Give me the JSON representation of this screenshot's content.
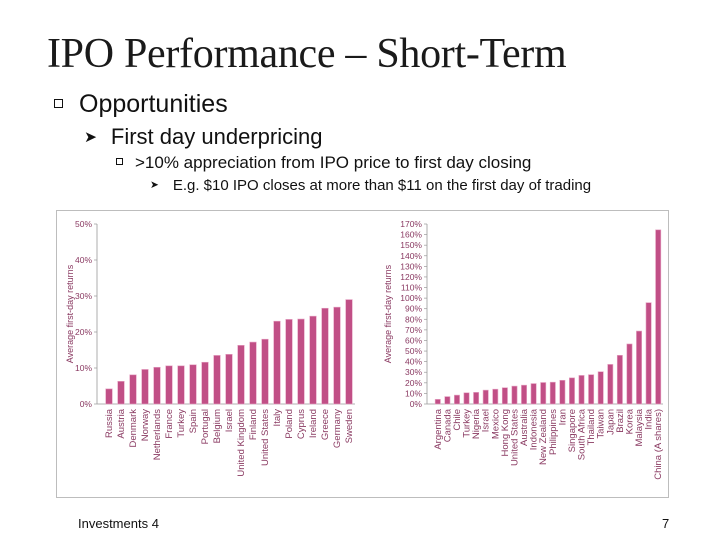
{
  "slide": {
    "title": "IPO Performance – Short-Term",
    "bullet1": "Opportunities",
    "bullet2": "First day underpricing",
    "bullet3": ">10% appreciation from IPO price to first day closing",
    "bullet4": "E.g. $10 IPO closes at more than $11 on the first day of trading",
    "footer": "Investments 4",
    "page_number": "7",
    "icons": {
      "level1": "square-bullet-icon",
      "level2": "arrow-bullet-icon"
    }
  },
  "colors": {
    "bar_fill": "#c14f86",
    "bar_light": "#e6a3c3",
    "text": "#111111",
    "axis_text": "#8a3a62"
  },
  "chart_data": [
    {
      "type": "bar",
      "title": "",
      "ylabel": "Average first-day returns",
      "ylim": [
        0,
        50
      ],
      "yticks": [
        "0%",
        "10%",
        "20%",
        "30%",
        "40%",
        "50%"
      ],
      "categories": [
        "Russia",
        "Austria",
        "Denmark",
        "Norway",
        "Netherlands",
        "France",
        "Turkey",
        "Spain",
        "Portugal",
        "Belgium",
        "Israel",
        "United Kingdom",
        "Finland",
        "United States",
        "Italy",
        "Poland",
        "Cyprus",
        "Ireland",
        "Greece",
        "Germany",
        "Sweden"
      ],
      "values": [
        4.2,
        6.3,
        8.1,
        9.6,
        10.2,
        10.6,
        10.6,
        10.9,
        11.6,
        13.5,
        13.8,
        16.3,
        17.2,
        18.0,
        23.0,
        23.5,
        23.6,
        24.4,
        26.6,
        26.9,
        29.0
      ]
    },
    {
      "type": "bar",
      "title": "",
      "ylabel": "Average first-day returns",
      "ylim": [
        0,
        170
      ],
      "yticks": [
        "0%",
        "10%",
        "20%",
        "30%",
        "40%",
        "50%",
        "60%",
        "70%",
        "80%",
        "90%",
        "100%",
        "110%",
        "120%",
        "130%",
        "140%",
        "150%",
        "160%",
        "170%"
      ],
      "categories": [
        "Argentina",
        "Canada",
        "Chile",
        "Turkey",
        "Nigeria",
        "Israel",
        "Mexico",
        "Hong Kong",
        "United States",
        "Australia",
        "Indonesia",
        "New Zealand",
        "Philippines",
        "Iran",
        "Singapore",
        "South Africa",
        "Thailand",
        "Taiwan",
        "Japan",
        "Brazil",
        "Korea",
        "Malaysia",
        "India",
        "China (A shares)"
      ],
      "values": [
        4.4,
        7.0,
        8.4,
        10.6,
        11.0,
        13.1,
        14.0,
        15.4,
        16.9,
        17.8,
        19.3,
        20.3,
        20.6,
        22.4,
        24.7,
        27.0,
        27.7,
        30.5,
        37.4,
        46.0,
        56.7,
        68.9,
        95.7,
        164.5
      ]
    }
  ]
}
